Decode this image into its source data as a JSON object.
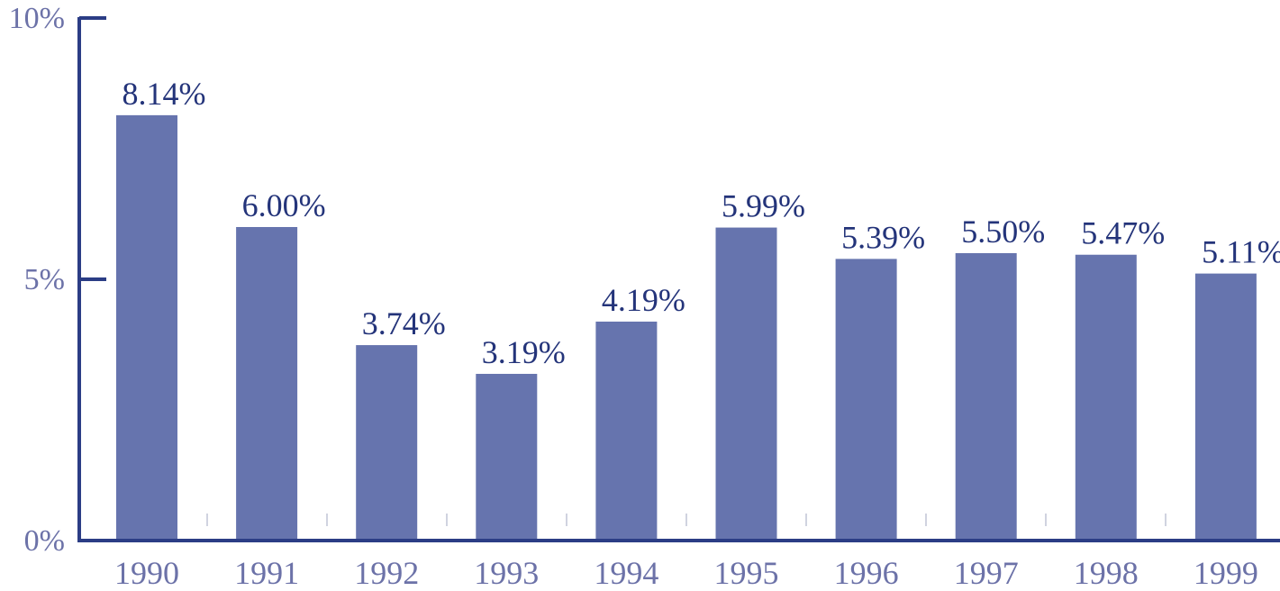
{
  "chart_data": {
    "type": "bar",
    "categories": [
      "1990",
      "1991",
      "1992",
      "1993",
      "1994",
      "1995",
      "1996",
      "1997",
      "1998",
      "1999"
    ],
    "values": [
      8.14,
      6.0,
      3.74,
      3.19,
      4.19,
      5.99,
      5.39,
      5.5,
      5.47,
      5.11
    ],
    "data_labels": [
      "8.14%",
      "6.00%",
      "3.74%",
      "3.19%",
      "4.19%",
      "5.99%",
      "5.39%",
      "5.50%",
      "5.47%",
      "5.11%"
    ],
    "title": "",
    "xlabel": "",
    "ylabel": "",
    "ylim": [
      0,
      10
    ],
    "y_ticks": [
      {
        "value": 0,
        "label": "0%"
      },
      {
        "value": 5,
        "label": "5%"
      },
      {
        "value": 10,
        "label": "10%"
      }
    ],
    "grid": false,
    "legend": "none",
    "colors": {
      "bar": "#6674ae",
      "axis": "#2b3d85",
      "data_label": "#24347a",
      "tick_label": "#6c72a8",
      "minor_tick": "#d0d3e0"
    }
  }
}
